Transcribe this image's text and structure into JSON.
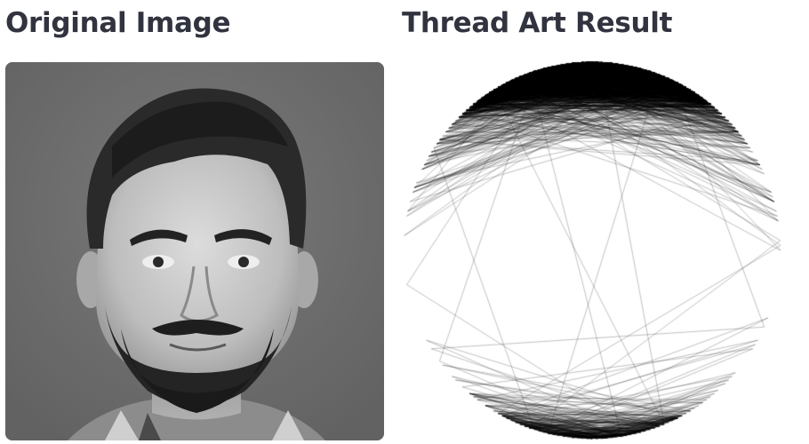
{
  "columns": {
    "left": {
      "title": "Original Image",
      "image_description": "grayscale-portrait-photo"
    },
    "right": {
      "title": "Thread Art Result",
      "image_description": "circular-string-art-portrait"
    }
  },
  "colors": {
    "title_text": "#31333f",
    "photo_background": "#6d6d6d",
    "thread": "#000000",
    "canvas_background": "#ffffff"
  }
}
